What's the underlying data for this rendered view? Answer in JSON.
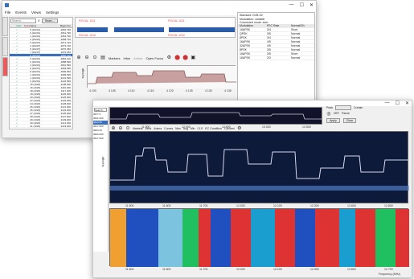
{
  "win1": {
    "menu": [
      "File",
      "Events",
      "Views",
      "Settings"
    ],
    "controls": [
      "—",
      "☐",
      "✕"
    ],
    "vtabs": [
      "Global",
      "Events",
      "Ranking"
    ],
    "search_placeholder": "Search...",
    "search_btn": "Searc...",
    "list_headers": [
      "Valid",
      "Tasks",
      "Name",
      "Begin Fre"
    ],
    "rows": [
      [
        "✓",
        "",
        "5 (10231)",
        "4046.790"
      ],
      [
        "✓",
        "",
        "0 (10231)",
        "4061.790"
      ],
      [
        "✓",
        "",
        "1 (10231)",
        "4063.790"
      ],
      [
        "✓",
        "",
        "2 (10231)",
        "4068.720"
      ],
      [
        "✓",
        "",
        "3 (10237)",
        "4071.720"
      ],
      [
        "✓",
        "",
        "4 (10237)",
        "4073.720"
      ],
      [
        "✓",
        "",
        "5 (10237)",
        "4076.450"
      ],
      [
        "✓",
        "",
        "7 (10237)",
        "4079.450"
      ],
      [
        "✓",
        "",
        "8 (10231)",
        "4082.120"
      ],
      [
        "✓",
        "",
        "0 (10231)",
        "4084.120"
      ],
      [
        "✓",
        "",
        "2 (10231)",
        "4088.590"
      ],
      [
        "✓",
        "",
        "4 (10231)",
        "4091.590"
      ],
      [
        "✓",
        "",
        "6 (10237)",
        "4093.590"
      ],
      [
        "✓",
        "",
        "8 (10237)",
        "4096.590"
      ],
      [
        "✓",
        "",
        "1 (10231)",
        "4099.590"
      ],
      [
        "✓",
        "",
        "1 (10231)",
        "4101.590"
      ],
      [
        "✓",
        "",
        "3 (10231)",
        "4103.590"
      ],
      [
        "✓",
        "",
        "15 (1023)",
        "4108.000"
      ],
      [
        "✓",
        "",
        "16 (1023)",
        "4110.000"
      ],
      [
        "✓",
        "",
        "18 (1023)",
        "4117.000"
      ],
      [
        "✓",
        "",
        "19 (1023)",
        "4120.000"
      ],
      [
        "✓",
        "",
        "20 (1023)",
        "4125.000"
      ],
      [
        "✓",
        "",
        "22 (1023)",
        "4126.000"
      ],
      [
        "✓",
        "",
        "24 (1023)",
        "4128.000"
      ],
      [
        "✓",
        "",
        "25 (1023)",
        "4131.000"
      ],
      [
        "✓",
        "",
        "26 (1023)",
        "4133.000"
      ],
      [
        "✓",
        "",
        "27 (1023)",
        "4135.000"
      ],
      [
        "✓",
        "",
        "28 (1023)",
        "4137.000"
      ],
      [
        "✓",
        "",
        "29 (1023)",
        "4139.000"
      ],
      [
        "✓",
        "",
        "30 (1023)",
        "4141.000"
      ],
      [
        "✓",
        "",
        "31 (1023)",
        "4143.000"
      ],
      [
        "✓",
        "",
        "32 (1023)",
        "4145.000"
      ]
    ],
    "spec_labels": [
      "FISCAL 1011",
      "FISCAL 1011",
      "FISCAL 1015",
      "FISCAL 1022"
    ],
    "tools": [
      "Markers",
      "Infos",
      "Anima",
      "Open Focus"
    ],
    "freq_ticks": [
      "4 100",
      "4 105",
      "4 110",
      "4 115",
      "4 120",
      "4 125",
      "4 130",
      "4 135"
    ],
    "ylabel": "dBm/Hz",
    "rpanel_title": "Standard: DVB-S2",
    "rpanel_sub": "Modulation: variable",
    "rpanel_sub2": "Connected mode: auto",
    "rpanel_headers": [
      "Modulation",
      "FEC Rate",
      "Normal/Sh"
    ],
    "rpanel_rows": [
      [
        "16APSK",
        "3/4",
        "Short"
      ],
      [
        "QPSK",
        "3/5",
        "Normal"
      ],
      [
        "8PSK",
        "3/4",
        "Normal"
      ],
      [
        "16APSK",
        "4/5",
        "Normal"
      ],
      [
        "32APSK",
        "4/5",
        "Normal"
      ],
      [
        "8PSK",
        "3/5",
        "Normal"
      ],
      [
        "16APSK",
        "3/5",
        "Short"
      ],
      [
        "16APSK",
        "2/3",
        "Normal"
      ]
    ],
    "btn_list": "List channel",
    "btn_edit": "Edit channel",
    "chk": "Interpolate members",
    "bottom_label": "Couplability: B",
    "bottom_vals": [
      "Signal",
      "Manual"
    ]
  },
  "win2": {
    "controls": [
      "—",
      "☐",
      "✕"
    ],
    "side_items": [
      "4677.3",
      "4641.600",
      "4633.55",
      "4617.350",
      "4603.20",
      "4600.000",
      "4617.000"
    ],
    "search": "Search...",
    "tools": [
      "Markers",
      "Infos",
      "Anima",
      "Curves",
      "Max",
      "Avg",
      "Min",
      "CLS",
      "EC Condition",
      "Conveni"
    ],
    "top_ticks": [
      "11.500",
      "12.000",
      "12.500",
      "13.000",
      "12.500"
    ],
    "ylabel": "dBm/Hz",
    "plot_ticks": [
      "11.500",
      "11.600",
      "11.700",
      "12.000",
      "12.100",
      "12.300",
      "12.600",
      "12.800"
    ],
    "water_ticks": [
      "11.500",
      "11.600",
      "11.700",
      "12.000",
      "12.100",
      "12.300",
      "12.600",
      "12.700"
    ],
    "right": {
      "lbl1": "Peak",
      "lbl2": "Curtain",
      "btn1": "Apply",
      "btn2": "Clear",
      "lbl3": "DEF",
      "lbl4": "Pause"
    },
    "freq_unit": "Frequency (MHz)"
  }
}
